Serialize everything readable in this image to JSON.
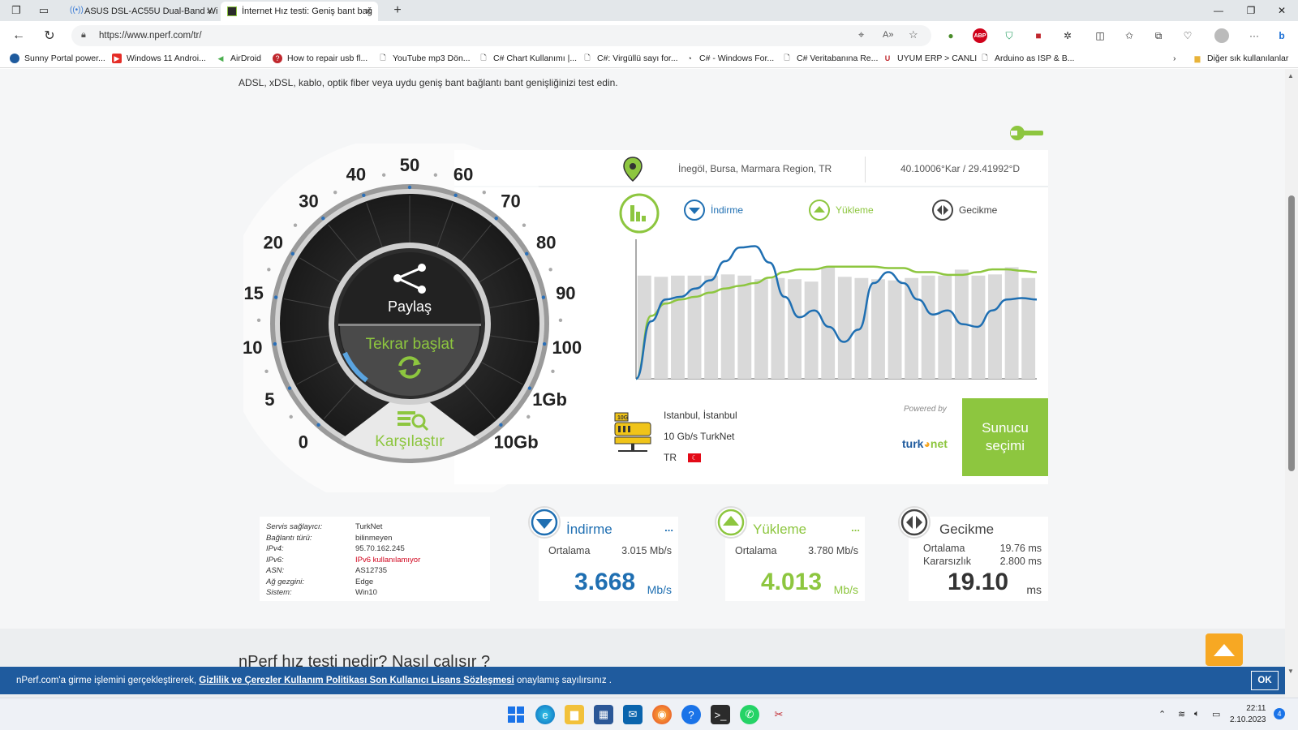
{
  "browser": {
    "tabs": [
      {
        "title": "ASUS DSL-AC55U Dual-Band Wi"
      },
      {
        "title": "İnternet Hız testi: Geniş bant bağ"
      }
    ],
    "url": "https://www.nperf.com/tr/",
    "bookmarks": [
      "Sunny Portal power...",
      "Windows 11 Androi...",
      "AirDroid",
      "How to repair usb fl...",
      "YouTube mp3 Dön...",
      "C# Chart Kullanımı |...",
      "C#: Virgüllü sayı for...",
      "C# - Windows For...",
      "C# Veritabanına Re...",
      "UYUM ERP > CANLI",
      "Arduino as ISP & B..."
    ],
    "other_bookmarks": "Diğer sık kullanılanlar"
  },
  "page": {
    "intro": "ADSL, xDSL, kablo, optik fiber veya uydu geniş bant bağlantı bant genişliğinizi test edin.",
    "location": {
      "city": "İnegöl, Bursa, Marmara Region, TR",
      "coords": "40.10006°Kar / 29.41992°D"
    },
    "legend": {
      "download": "İndirme",
      "upload": "Yükleme",
      "latency": "Gecikme"
    },
    "gauge": {
      "labels": [
        "0",
        "5",
        "10",
        "15",
        "20",
        "30",
        "40",
        "50",
        "60",
        "70",
        "80",
        "90",
        "100",
        "1Gb",
        "10Gb"
      ],
      "share": "Paylaş",
      "restart": "Tekrar başlat",
      "compare": "Karşılaştır"
    },
    "server": {
      "city": "Istanbul, İstanbul",
      "provider": "10 Gb/s TurkNet",
      "country": "TR",
      "powered_by": "Powered by",
      "powered_logo_a": "turk",
      "powered_logo_b": "net",
      "select_button": "Sunucu seçimi"
    },
    "info": [
      {
        "key": "Servis sağlayıcı:",
        "value": "TurkNet"
      },
      {
        "key": "Bağlantı türü:",
        "value": "bilinmeyen"
      },
      {
        "key": "IPv4:",
        "value": "95.70.162.245"
      },
      {
        "key": "IPv6:",
        "value": "IPv6 kullanılamıyor",
        "warn": true
      },
      {
        "key": "ASN:",
        "value": "AS12735"
      },
      {
        "key": "Ağ gezgini:",
        "value": "Edge"
      },
      {
        "key": "Sistem:",
        "value": "Win10"
      }
    ],
    "download": {
      "title": "İndirme",
      "avg_label": "Ortalama",
      "avg": "3.015 Mb/s",
      "value": "3.668",
      "unit": "Mb/s",
      "more": "..."
    },
    "upload": {
      "title": "Yükleme",
      "avg_label": "Ortalama",
      "avg": "3.780 Mb/s",
      "value": "4.013",
      "unit": "Mb/s",
      "more": "..."
    },
    "latency": {
      "title": "Gecikme",
      "avg_label": "Ortalama",
      "avg": "19.76 ms",
      "jitter_label": "Kararsızlık",
      "jitter": "2.800 ms",
      "value": "19.10",
      "unit": "ms"
    },
    "faq_title": "nPerf hız testi nedir? Nasıl çalışır ?",
    "cookie": {
      "text_before": "nPerf.com'a girme işlemini gerçekleştirerek, ",
      "link": "Gizlilik ve Çerezler Kullanım Politikası Son Kullanıcı Lisans Sözleşmesi",
      "text_after": " onaylamış sayılırsınız .",
      "ok": "OK"
    }
  },
  "colors": {
    "download": "#1f6fb2",
    "upload": "#8dc63f",
    "latency": "#444444",
    "accent_green": "#8dc63f",
    "cookie_bar": "#1f5b9e"
  },
  "chart_data": {
    "type": "bar",
    "bars": [
      0.86,
      0.85,
      0.86,
      0.86,
      0.86,
      0.87,
      0.86,
      0.83,
      0.84,
      0.83,
      0.81,
      0.93,
      0.85,
      0.84,
      0.83,
      0.82,
      0.84,
      0.86,
      0.86,
      0.91,
      0.86,
      0.87,
      0.93,
      0.84
    ],
    "download_curve": [
      0.0,
      0.42,
      0.58,
      0.6,
      0.66,
      0.72,
      0.86,
      0.96,
      0.97,
      0.85,
      0.6,
      0.45,
      0.5,
      0.38,
      0.27,
      0.36,
      0.7,
      0.78,
      0.7,
      0.58,
      0.47,
      0.5,
      0.4,
      0.38,
      0.5,
      0.58,
      0.59,
      0.58
    ],
    "upload_curve": [
      0.0,
      0.46,
      0.55,
      0.58,
      0.6,
      0.63,
      0.66,
      0.68,
      0.7,
      0.74,
      0.78,
      0.8,
      0.8,
      0.82,
      0.82,
      0.82,
      0.82,
      0.81,
      0.81,
      0.78,
      0.78,
      0.76,
      0.76,
      0.78,
      0.8,
      0.8,
      0.79,
      0.78
    ]
  }
}
